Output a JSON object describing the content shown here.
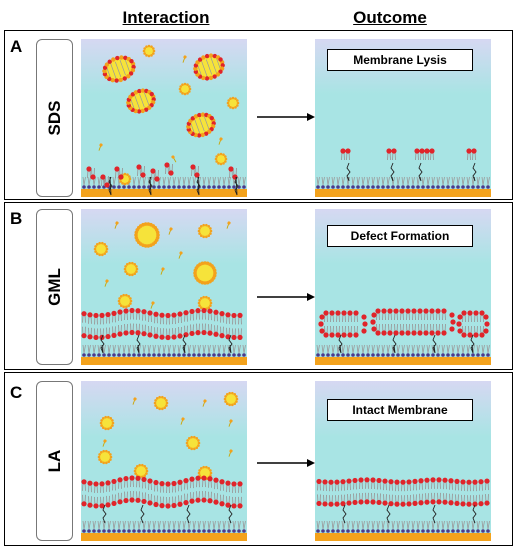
{
  "headers": {
    "interaction": "Interaction",
    "outcome": "Outcome"
  },
  "panels": [
    {
      "letter": "A",
      "label": "SDS",
      "outcome": "Membrane Lysis"
    },
    {
      "letter": "B",
      "label": "GML",
      "outcome": "Defect Formation"
    },
    {
      "letter": "C",
      "label": "LA",
      "outcome": "Intact Membrane"
    }
  ],
  "colors": {
    "sky_top": "#d6d8f2",
    "liquid": "#a8e4e4",
    "head_red": "#e0242a",
    "tail_gray": "#9a9a9a",
    "micelle_yellow": "#f6e33a",
    "support_orange": "#f3a21c",
    "support_purple": "#4b3a8c"
  }
}
